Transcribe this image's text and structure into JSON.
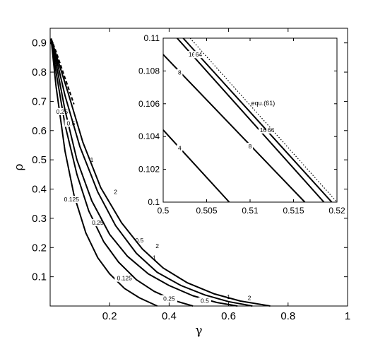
{
  "chart_data": [
    {
      "type": "line",
      "subtype": "contour",
      "title": "",
      "xlabel": "γ",
      "ylabel": "ρ",
      "xlim": [
        0.0,
        1.0
      ],
      "ylim": [
        0.0,
        0.95
      ],
      "xticks": [
        "0.2",
        "0.4",
        "0.6",
        "0.8",
        "1"
      ],
      "xtick_values": [
        0.2,
        0.4,
        0.6,
        0.8,
        1.0
      ],
      "yticks": [
        "0.1",
        "0.2",
        "0.3",
        "0.4",
        "0.5",
        "0.6",
        "0.7",
        "0.8",
        "0.9"
      ],
      "ytick_values": [
        0.1,
        0.2,
        0.3,
        0.4,
        0.5,
        0.6,
        0.7,
        0.8,
        0.9
      ],
      "grid": false,
      "series": [
        {
          "name": "0.125",
          "style": "solid",
          "labels": [
            {
              "x": 0.072,
              "y": 0.365,
              "text": "0.125"
            },
            {
              "x": 0.25,
              "y": 0.095,
              "text": "0.125"
            }
          ],
          "x": [
            0.003,
            0.02,
            0.05,
            0.08,
            0.12,
            0.16,
            0.2,
            0.25,
            0.3,
            0.36
          ],
          "y": [
            0.915,
            0.75,
            0.53,
            0.38,
            0.25,
            0.165,
            0.11,
            0.06,
            0.028,
            0.0
          ]
        },
        {
          "name": "0.25",
          "style": "solid",
          "labels": [
            {
              "x": 0.04,
              "y": 0.665,
              "text": "0.25"
            },
            {
              "x": 0.16,
              "y": 0.285,
              "text": "0.25"
            },
            {
              "x": 0.4,
              "y": 0.025,
              "text": "0.25"
            }
          ],
          "x": [
            0.003,
            0.02,
            0.05,
            0.09,
            0.13,
            0.18,
            0.23,
            0.29,
            0.35,
            0.42,
            0.48
          ],
          "y": [
            0.915,
            0.8,
            0.62,
            0.45,
            0.325,
            0.22,
            0.15,
            0.09,
            0.05,
            0.018,
            0.0
          ]
        },
        {
          "name": "0.5",
          "style": "solid",
          "labels": [
            {
              "x": 0.07,
              "y": 0.625,
              "text": "0.5"
            },
            {
              "x": 0.3,
              "y": 0.225,
              "text": "0.5"
            },
            {
              "x": 0.52,
              "y": 0.018,
              "text": "0.5"
            }
          ],
          "x": [
            0.003,
            0.02,
            0.05,
            0.09,
            0.14,
            0.2,
            0.26,
            0.33,
            0.4,
            0.48,
            0.56,
            0.63
          ],
          "y": [
            0.915,
            0.83,
            0.67,
            0.5,
            0.36,
            0.245,
            0.17,
            0.11,
            0.07,
            0.035,
            0.012,
            0.0
          ]
        },
        {
          "name": "1",
          "style": "solid",
          "labels": [
            {
              "x": 0.14,
              "y": 0.5,
              "text": "1"
            },
            {
              "x": 0.35,
              "y": 0.165,
              "text": "1"
            },
            {
              "x": 0.6,
              "y": 0.032,
              "text": "1"
            }
          ],
          "x": [
            0.003,
            0.02,
            0.05,
            0.1,
            0.16,
            0.22,
            0.29,
            0.36,
            0.44,
            0.52,
            0.6,
            0.68
          ],
          "y": [
            0.915,
            0.85,
            0.72,
            0.545,
            0.39,
            0.275,
            0.18,
            0.115,
            0.07,
            0.038,
            0.015,
            0.0
          ]
        },
        {
          "name": "2",
          "style": "solid",
          "labels": [
            {
              "x": 0.22,
              "y": 0.39,
              "text": "2"
            },
            {
              "x": 0.36,
              "y": 0.205,
              "text": "2"
            },
            {
              "x": 0.67,
              "y": 0.028,
              "text": "2"
            }
          ],
          "x": [
            0.003,
            0.02,
            0.06,
            0.11,
            0.17,
            0.24,
            0.31,
            0.38,
            0.46,
            0.55,
            0.64,
            0.74
          ],
          "y": [
            0.915,
            0.86,
            0.73,
            0.56,
            0.405,
            0.285,
            0.195,
            0.13,
            0.08,
            0.042,
            0.017,
            0.0
          ]
        },
        {
          "name": "equ.(61)",
          "style": "dashed",
          "x": [
            0.003,
            0.02,
            0.05,
            0.08
          ],
          "y": [
            0.915,
            0.87,
            0.78,
            0.69
          ]
        }
      ],
      "markers": [
        {
          "x": 0.004,
          "y": 0.9
        },
        {
          "x": 0.01,
          "y": 0.88
        },
        {
          "x": 0.015,
          "y": 0.86
        }
      ]
    },
    {
      "type": "line",
      "subtype": "contour-inset",
      "title": "",
      "xlabel": "",
      "ylabel": "",
      "xlim": [
        0.5,
        0.52
      ],
      "ylim": [
        0.1,
        0.11
      ],
      "xticks": [
        "0.5",
        "0.505",
        "0.51",
        "0.515",
        "0.52"
      ],
      "xtick_values": [
        0.5,
        0.505,
        0.51,
        0.515,
        0.52
      ],
      "yticks": [
        "0.1",
        "0.102",
        "0.104",
        "0.106",
        "0.108",
        "0.11"
      ],
      "ytick_values": [
        0.1,
        0.102,
        0.104,
        0.106,
        0.108,
        0.11
      ],
      "grid": false,
      "annotation": {
        "text": "equ.(61)",
        "x": 0.5115,
        "y": 0.1059
      },
      "series": [
        {
          "name": "4",
          "style": "solid",
          "x": [
            0.5,
            0.5076
          ],
          "y": [
            0.1044,
            0.1
          ],
          "labels": [
            {
              "x": 0.5019,
              "y": 0.1033,
              "text": "4"
            }
          ]
        },
        {
          "name": "8",
          "style": "solid",
          "x": [
            0.5,
            0.5163
          ],
          "y": [
            0.109,
            0.1
          ],
          "labels": [
            {
              "x": 0.5019,
              "y": 0.1079,
              "text": "8"
            },
            {
              "x": 0.51,
              "y": 0.1034,
              "text": "8"
            }
          ]
        },
        {
          "name": "16",
          "style": "solid",
          "x": [
            0.5016,
            0.5185
          ],
          "y": [
            0.11,
            0.1
          ],
          "labels": [
            {
              "x": 0.5033,
              "y": 0.109,
              "text": "16"
            },
            {
              "x": 0.5115,
              "y": 0.1044,
              "text": "16"
            }
          ]
        },
        {
          "name": "64",
          "style": "solid",
          "x": [
            0.5023,
            0.5194
          ],
          "y": [
            0.11,
            0.1
          ],
          "labels": [
            {
              "x": 0.5041,
              "y": 0.109,
              "text": "64"
            },
            {
              "x": 0.5124,
              "y": 0.1044,
              "text": "64"
            }
          ]
        },
        {
          "name": "equ.(61)",
          "style": "dotted",
          "x": [
            0.5031,
            0.52
          ],
          "y": [
            0.11,
            0.1
          ]
        }
      ]
    }
  ]
}
